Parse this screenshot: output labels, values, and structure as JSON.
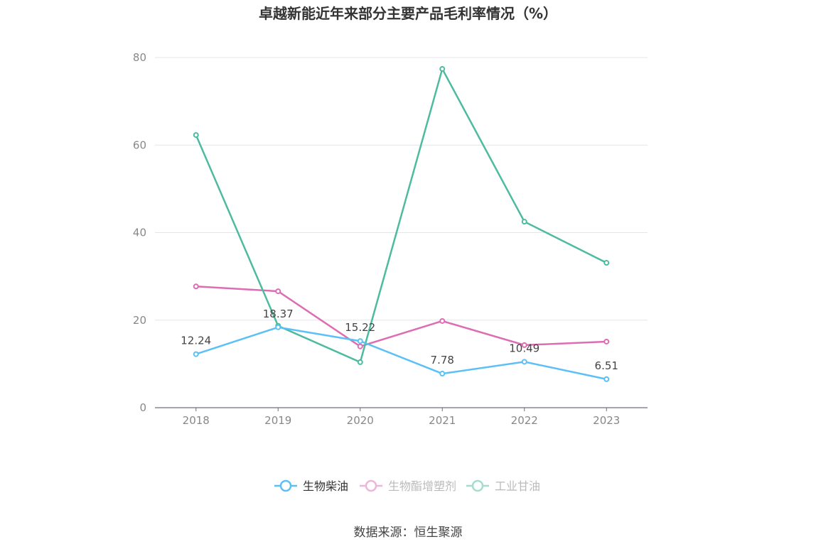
{
  "chart_data": {
    "type": "line",
    "title": "卓越新能近年来部分主要产品毛利率情况（%）",
    "source": "数据来源：恒生聚源",
    "xlabel": "",
    "ylabel": "",
    "ylim": [
      0,
      80
    ],
    "yticks": [
      "0",
      "20",
      "40",
      "60",
      "80"
    ],
    "grid": true,
    "legend_position": "bottom",
    "categories": [
      "2018",
      "2019",
      "2020",
      "2021",
      "2022",
      "2023"
    ],
    "series": [
      {
        "name": "生物柴油",
        "color": "#5bc0f8",
        "values": [
          12.24,
          18.37,
          15.22,
          7.78,
          10.49,
          6.51
        ],
        "labels": [
          "12.24",
          "18.37",
          "15.22",
          "7.78",
          "10.49",
          "6.51"
        ],
        "active": true
      },
      {
        "name": "生物酯增塑剂",
        "color": "#dd6db3",
        "values": [
          27.7,
          26.6,
          14.0,
          19.8,
          14.3,
          15.1
        ],
        "active": false
      },
      {
        "name": "工业甘油",
        "color": "#4dbb9f",
        "values": [
          62.3,
          18.7,
          10.4,
          77.4,
          42.5,
          33.1
        ],
        "active": false
      }
    ]
  }
}
